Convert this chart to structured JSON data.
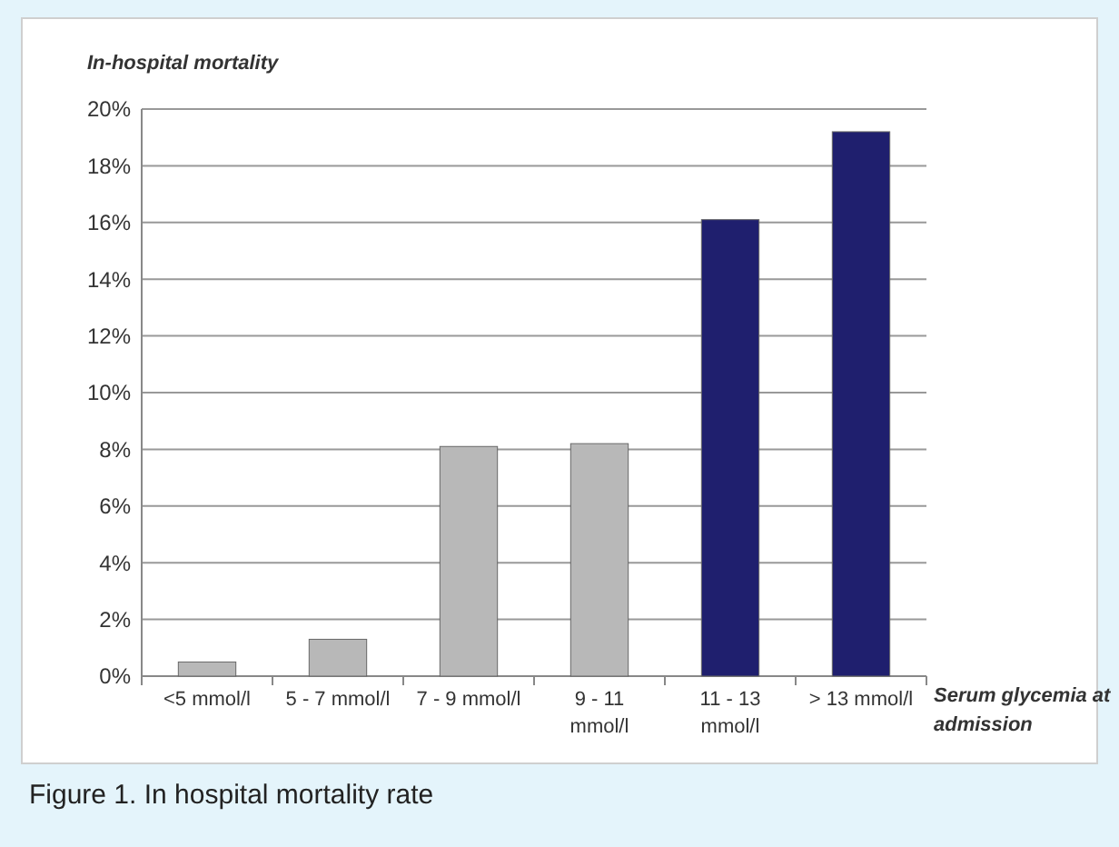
{
  "chart_data": {
    "type": "bar",
    "ylabel": "In-hospital mortality",
    "xlabel": "Serum glycemia at admission",
    "annotations": [
      "Figure 1. In hospital mortality rate"
    ],
    "categories": [
      "<5 mmol/l",
      "5 - 7 mmol/l",
      "7 - 9 mmol/l",
      "9 - 11 mmol/l",
      "11 - 13 mmol/l",
      "> 13 mmol/l"
    ],
    "values": [
      0.5,
      1.3,
      8.1,
      8.2,
      16.1,
      19.2
    ],
    "colors": [
      "#b8b8b8",
      "#b8b8b8",
      "#b8b8b8",
      "#b8b8b8",
      "#1f1f6e",
      "#1f1f6e"
    ],
    "ylim": [
      0,
      20
    ],
    "yticks": [
      {
        "value": 0,
        "label": "0%"
      },
      {
        "value": 2,
        "label": "2%"
      },
      {
        "value": 4,
        "label": "4%"
      },
      {
        "value": 6,
        "label": "6%"
      },
      {
        "value": 8,
        "label": "8%"
      },
      {
        "value": 10,
        "label": "10%"
      },
      {
        "value": 12,
        "label": "12%"
      },
      {
        "value": 14,
        "label": "14%"
      },
      {
        "value": 16,
        "label": "16%"
      },
      {
        "value": 18,
        "label": "18%"
      },
      {
        "value": 20,
        "label": "20%"
      }
    ],
    "grid": "y"
  }
}
